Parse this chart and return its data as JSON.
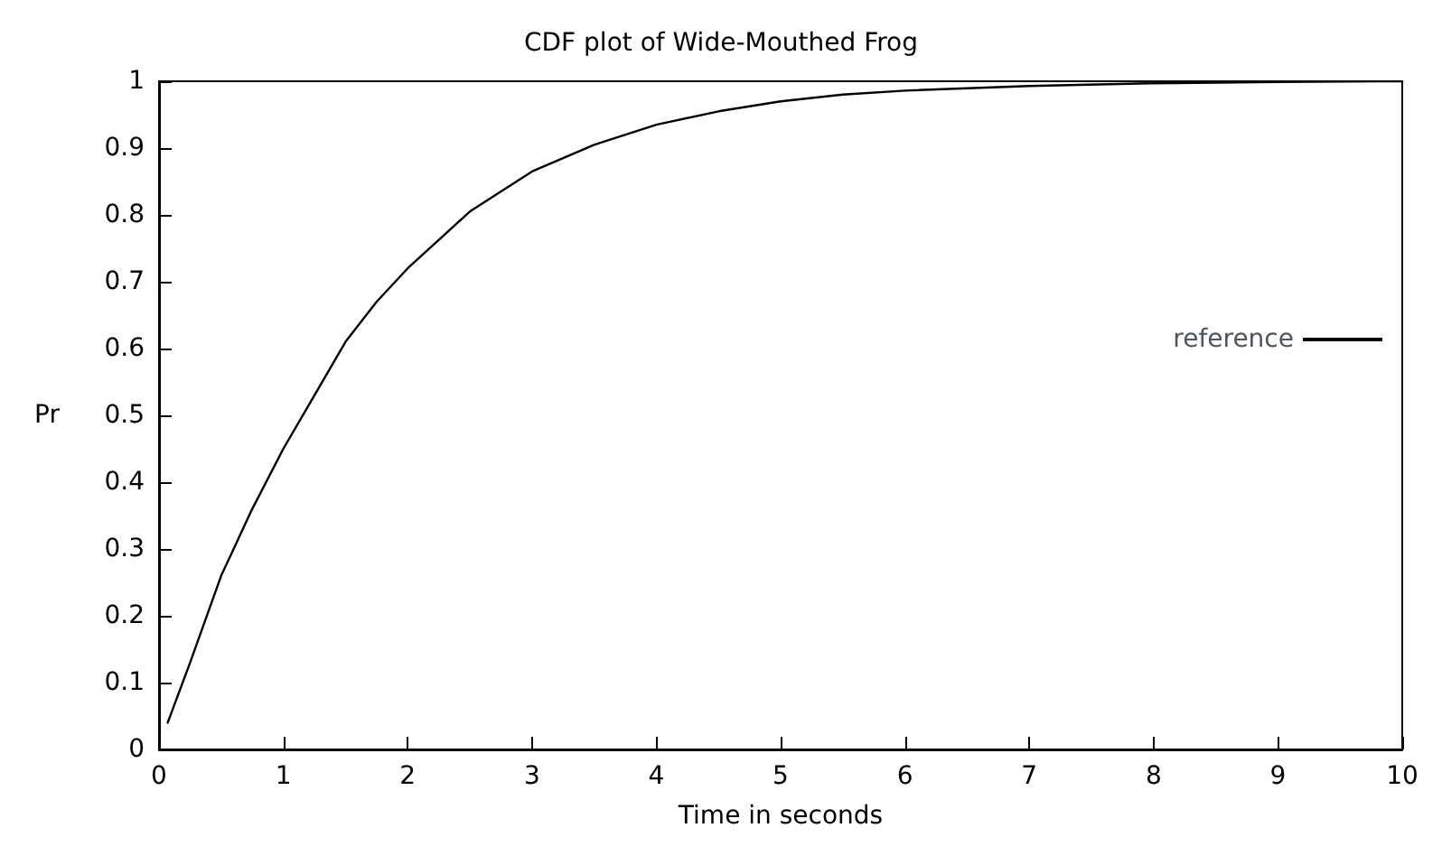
{
  "chart_data": {
    "type": "line",
    "title": "CDF plot of Wide-Mouthed Frog",
    "xlabel": "Time in seconds",
    "ylabel": "Pr",
    "x": [
      0.07,
      0.25,
      0.5,
      0.75,
      1,
      1.25,
      1.5,
      1.75,
      2,
      2.5,
      3,
      3.5,
      4,
      4.5,
      5,
      5.5,
      6,
      7,
      8,
      9,
      10
    ],
    "series": [
      {
        "name": "reference",
        "color": "#000000",
        "values": [
          0.04,
          0.13,
          0.26,
          0.36,
          0.45,
          0.53,
          0.61,
          0.67,
          0.72,
          0.805,
          0.865,
          0.905,
          0.935,
          0.955,
          0.97,
          0.98,
          0.986,
          0.993,
          0.997,
          0.999,
          1
        ]
      }
    ],
    "xlim": [
      0,
      10
    ],
    "xticks": [
      0,
      1,
      2,
      3,
      4,
      5,
      6,
      7,
      8,
      9,
      10
    ],
    "ylim": [
      0,
      1
    ],
    "yticks": [
      0,
      0.1,
      0.2,
      0.3,
      0.4,
      0.5,
      0.6,
      0.7,
      0.8,
      0.9,
      1
    ],
    "grid": false,
    "legend": "right",
    "marker": "none",
    "line_style": "solid"
  }
}
